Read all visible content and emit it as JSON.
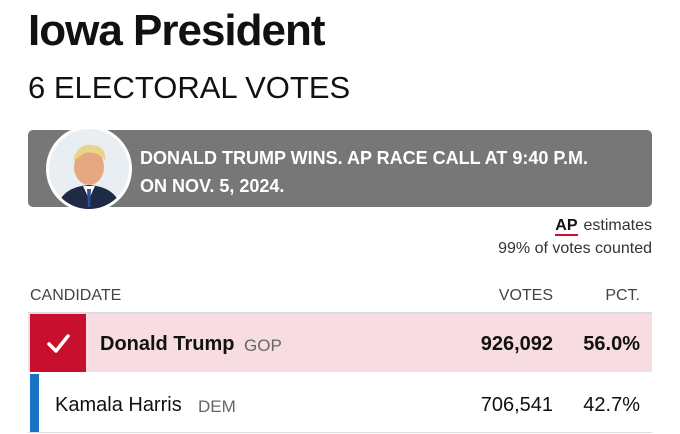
{
  "header": {
    "title": "Iowa President",
    "subtitle": "6 ELECTORAL VOTES"
  },
  "banner": {
    "text": "DONALD TRUMP WINS. AP RACE CALL AT 9:40 P.M. ON NOV. 5, 2024."
  },
  "estimates": {
    "source": "AP",
    "label": "estimates",
    "counted": "99% of votes counted"
  },
  "table": {
    "columns": [
      "CANDIDATE",
      "VOTES",
      "PCT."
    ],
    "rows": [
      [
        "Donald Trump",
        "GOP",
        "926,092",
        "56.0%"
      ],
      [
        "Kamala Harris",
        "DEM",
        "706,541",
        "42.7%"
      ]
    ]
  }
}
